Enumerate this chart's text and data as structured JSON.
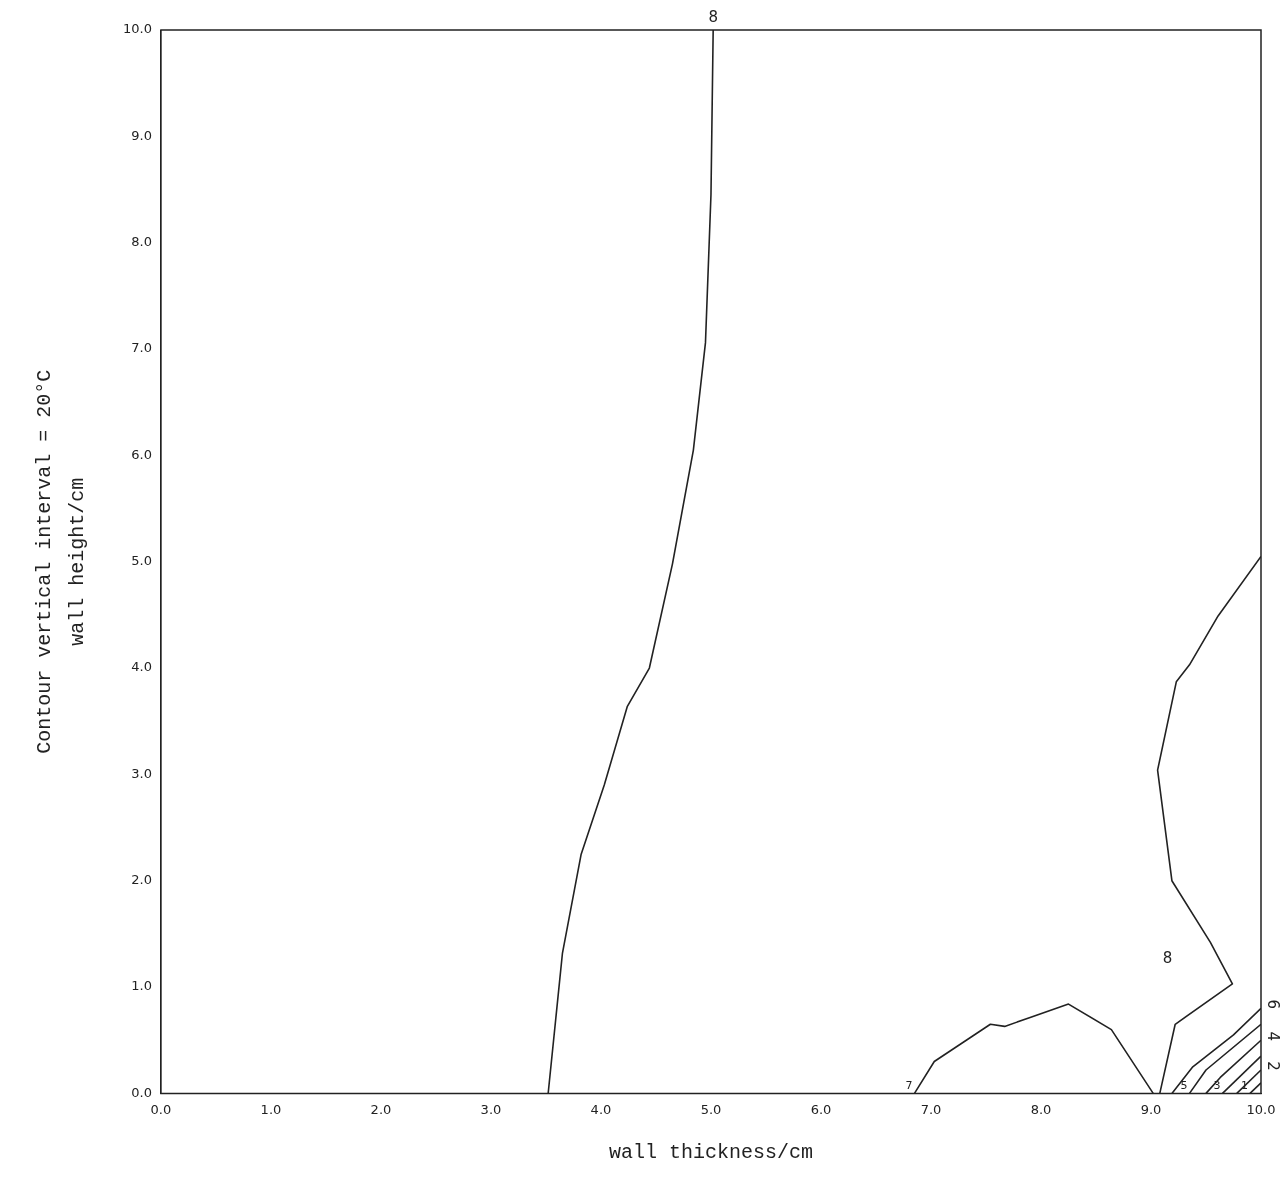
{
  "chart_data": {
    "type": "line",
    "xlabel": "wall thickness/cm",
    "ylabel": "wall height/cm",
    "annotations": [
      "Contour vertical interval = 20°C"
    ],
    "xlim": [
      0,
      10
    ],
    "ylim": [
      0,
      10
    ],
    "xticks": [
      {
        "value": 0,
        "label": "0.0"
      },
      {
        "value": 1,
        "label": "1.0"
      },
      {
        "value": 2,
        "label": "2.0"
      },
      {
        "value": 3,
        "label": "3.0"
      },
      {
        "value": 4,
        "label": "4.0"
      },
      {
        "value": 5,
        "label": "5.0"
      },
      {
        "value": 6,
        "label": "6.0"
      },
      {
        "value": 7,
        "label": "7.0"
      },
      {
        "value": 8,
        "label": "8.0"
      },
      {
        "value": 9,
        "label": "9.0"
      },
      {
        "value": 10,
        "label": "10.0"
      }
    ],
    "yticks": [
      {
        "value": 0,
        "label": "0.0"
      },
      {
        "value": 1,
        "label": "1.0"
      },
      {
        "value": 2,
        "label": "2.0"
      },
      {
        "value": 3,
        "label": "3.0"
      },
      {
        "value": 4,
        "label": "4.0"
      },
      {
        "value": 5,
        "label": "5.0"
      },
      {
        "value": 6,
        "label": "6.0"
      },
      {
        "value": 7,
        "label": "7.0"
      },
      {
        "value": 8,
        "label": "8.0"
      },
      {
        "value": 9,
        "label": "9.0"
      },
      {
        "value": 10,
        "label": "10.0"
      }
    ],
    "grid": false,
    "legend": false,
    "marker": "none",
    "line_style": "solid",
    "series": [
      {
        "name": "8",
        "color": "#222222",
        "x": [
          5.02,
          5.0,
          4.95,
          4.84,
          4.65,
          4.44,
          4.24,
          4.03,
          3.82,
          3.65,
          3.52
        ],
        "values": [
          10,
          8.45,
          7.06,
          6.05,
          4.98,
          4.0,
          3.64,
          2.9,
          2.25,
          1.32,
          0
        ]
      },
      {
        "name": "7",
        "color": "#222222",
        "x": [
          6.85,
          7.03,
          7.54,
          7.67,
          8.25,
          8.64,
          9.02
        ],
        "values": [
          0,
          0.3,
          0.65,
          0.63,
          0.84,
          0.6,
          0
        ]
      },
      {
        "name": "8",
        "color": "#222222",
        "x": [
          9.08,
          9.22,
          9.74,
          9.54,
          9.19,
          9.06,
          9.23,
          9.35,
          9.61,
          10
        ],
        "values": [
          0,
          0.65,
          1.03,
          1.42,
          2.0,
          3.04,
          3.87,
          4.03,
          4.49,
          5.05
        ]
      },
      {
        "name": "6",
        "color": "#222222",
        "x": [
          10,
          9.75,
          9.38,
          9.19
        ],
        "values": [
          0.8,
          0.55,
          0.25,
          0
        ]
      },
      {
        "name": "5",
        "color": "#222222",
        "x": [
          9.35,
          9.5,
          10
        ],
        "values": [
          0,
          0.22,
          0.65
        ]
      },
      {
        "name": "4",
        "color": "#222222",
        "x": [
          10,
          9.63,
          9.5
        ],
        "values": [
          0.5,
          0.15,
          0
        ]
      },
      {
        "name": "3",
        "color": "#222222",
        "x": [
          9.65,
          10
        ],
        "values": [
          0,
          0.35
        ]
      },
      {
        "name": "2",
        "color": "#222222",
        "x": [
          10,
          9.78
        ],
        "values": [
          0.22,
          0
        ]
      },
      {
        "name": "1",
        "color": "#222222",
        "x": [
          9.9,
          10
        ],
        "values": [
          0,
          0.1
        ]
      }
    ]
  }
}
